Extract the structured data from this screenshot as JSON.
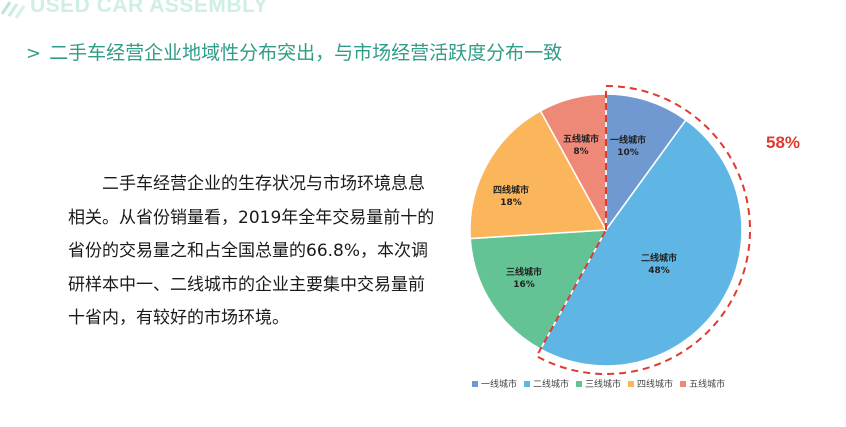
{
  "brand": {
    "text": "USED CAR ASSEMBLY"
  },
  "headline": {
    "chevron": ">",
    "text": "二手车经营企业地域性分布突出，与市场经营活跃度分布一致"
  },
  "body_text": "二手车经营企业的生存状况与市场环境息息相关。从省份销量看，2019年全年交易量前十的省份的交易量之和占全国总量的66.8%，本次调研样本中一、二线城市的企业主要集中交易量前十省内，有较好的市场环境。",
  "chart_data": {
    "type": "pie",
    "title": "",
    "categories": [
      "一线城市",
      "二线城市",
      "三线城市",
      "四线城市",
      "五线城市"
    ],
    "values": [
      10,
      48,
      16,
      18,
      8
    ],
    "value_labels": [
      "10%",
      "48%",
      "16%",
      "18%",
      "8%"
    ],
    "colors": [
      "#6f99d0",
      "#5fb6e4",
      "#64c394",
      "#fbb65c",
      "#ef8977"
    ],
    "start_angle": "12 o'clock",
    "direction": "clockwise",
    "legend_position": "bottom",
    "highlight": {
      "label": "58%",
      "covers": [
        "一线城市",
        "二线城市"
      ],
      "color": "#e03a2f",
      "style": "dashed"
    }
  }
}
